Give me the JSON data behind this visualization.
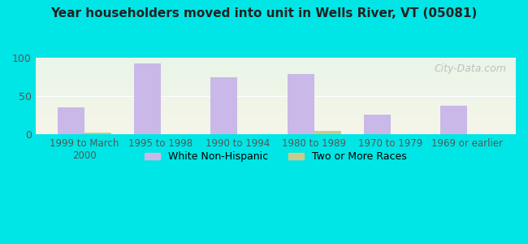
{
  "title": "Year householders moved into unit in Wells River, VT (05081)",
  "categories": [
    "1999 to March\n2000",
    "1995 to 1998",
    "1990 to 1994",
    "1980 to 1989",
    "1970 to 1979",
    "1969 or earlier"
  ],
  "white_non_hispanic": [
    35,
    93,
    75,
    79,
    26,
    38
  ],
  "two_or_more_races": [
    3,
    0,
    0,
    5,
    0,
    0
  ],
  "bar_color_white": "#c9b8e8",
  "bar_color_two": "#c8cc8a",
  "background_outer": "#00e5e5",
  "background_inner_top": "#e8f5e8",
  "background_inner_bottom": "#f5f5e8",
  "ylim": [
    0,
    100
  ],
  "yticks": [
    0,
    50,
    100
  ],
  "bar_width": 0.35,
  "watermark": "City-Data.com",
  "legend_labels": [
    "White Non-Hispanic",
    "Two or More Races"
  ]
}
